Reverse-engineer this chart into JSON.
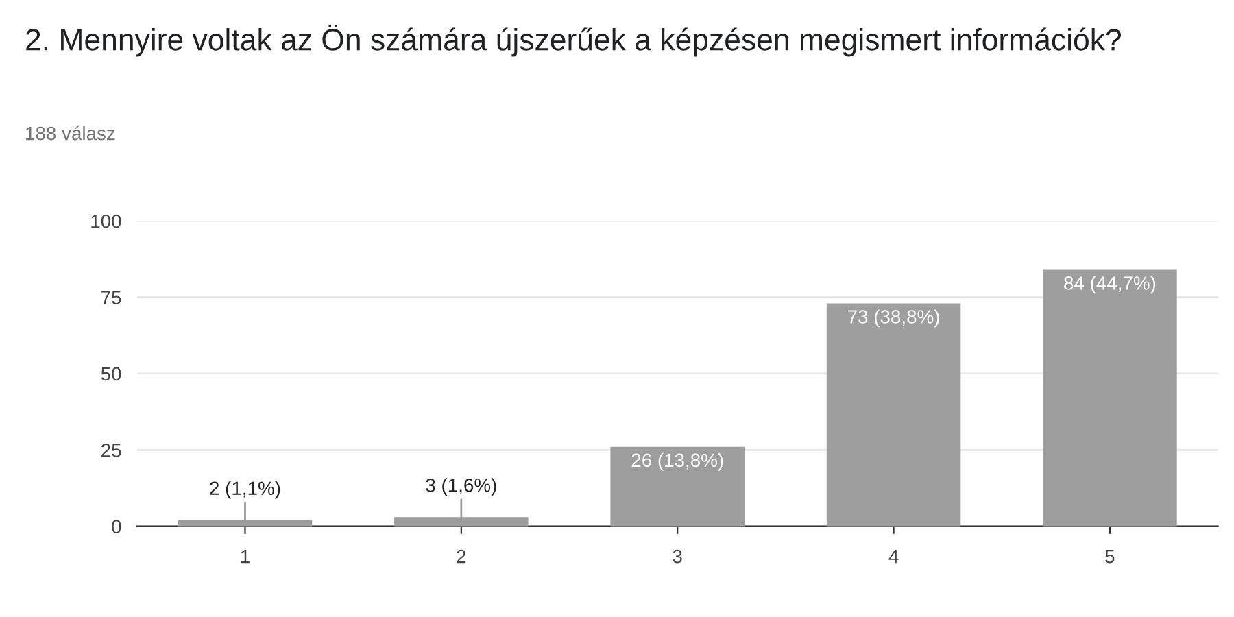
{
  "chart_data": {
    "type": "bar",
    "title": "2. Mennyire voltak az Ön számára újszerűek a képzésen megismert információk?",
    "subtitle": "188 válasz",
    "categories": [
      "1",
      "2",
      "3",
      "4",
      "5"
    ],
    "values": [
      2,
      3,
      26,
      73,
      84
    ],
    "value_labels": [
      "2 (1,1%)",
      "3 (1,6%)",
      "26 (13,8%)",
      "73 (38,8%)",
      "84 (44,7%)"
    ],
    "color": "#9e9e9e",
    "ylim": [
      0,
      100
    ],
    "yticks": [
      0,
      25,
      50,
      75,
      100
    ],
    "grid": "y"
  }
}
